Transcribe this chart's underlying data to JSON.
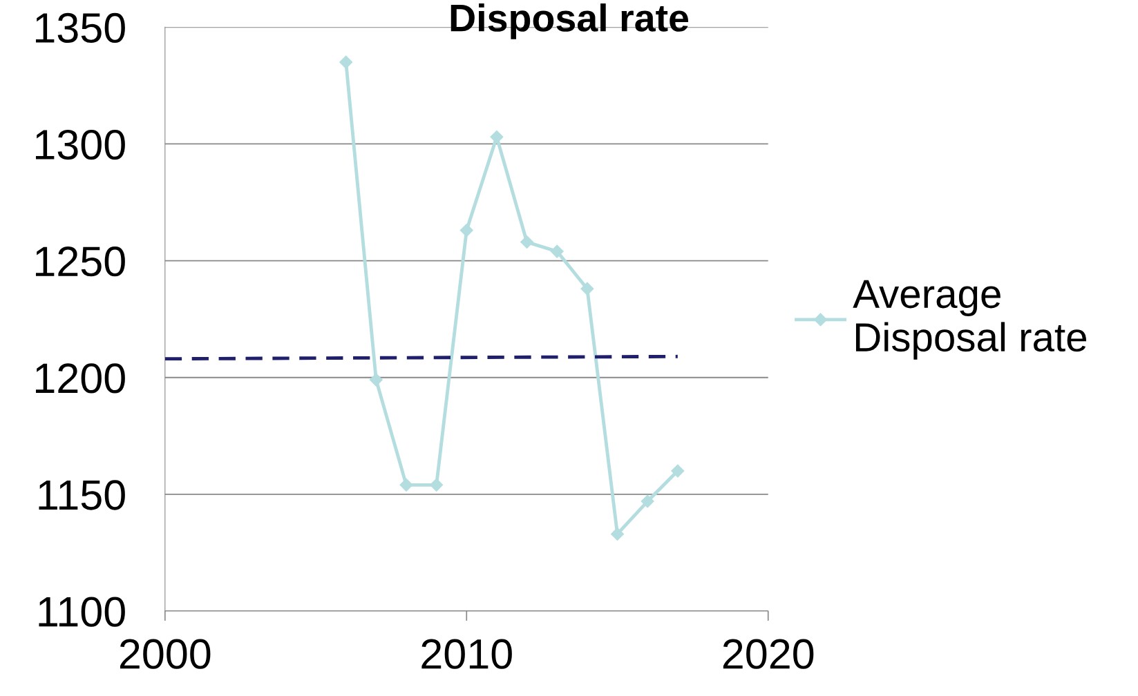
{
  "chart_data": {
    "type": "line",
    "title": "Disposal rate",
    "series": [
      {
        "name": "Average Disposal rate",
        "color": "#b4dde0",
        "x": [
          2006,
          2007,
          2008,
          2009,
          2010,
          2011,
          2012,
          2013,
          2014,
          2015,
          2016,
          2017
        ],
        "values": [
          1335,
          1199,
          1154,
          1154,
          1263,
          1303,
          1258,
          1254,
          1238,
          1133,
          1147,
          1160
        ],
        "marker": "diamond",
        "line_style": "solid"
      },
      {
        "color": "#1f1f6b",
        "x": [
          2000,
          2017
        ],
        "values": [
          1208,
          1209
        ],
        "marker": "none",
        "line_style": "dashed"
      }
    ],
    "xlim": [
      2000,
      2020
    ],
    "xticks": [
      2000,
      2010,
      2020
    ],
    "ylim": [
      1100,
      1350
    ],
    "yticks": [
      1100,
      1150,
      1200,
      1250,
      1300,
      1350
    ],
    "grid": "y",
    "legend": "right"
  }
}
